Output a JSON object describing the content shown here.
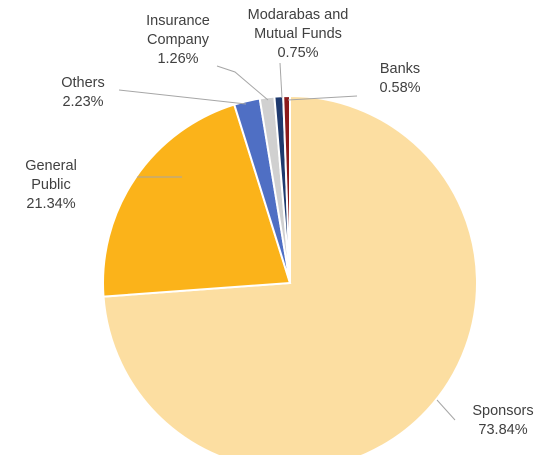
{
  "chart_data": {
    "type": "pie",
    "title": "",
    "start_angle_deg": 0,
    "direction": "clockwise",
    "slices": [
      {
        "name": "Sponsors",
        "label_lines": [
          "Sponsors"
        ],
        "value_label": "73.84%",
        "value": 73.84,
        "color": "#fcdea1"
      },
      {
        "name": "General Public",
        "label_lines": [
          "General",
          "Public"
        ],
        "value_label": "21.34%",
        "value": 21.34,
        "color": "#fbb31a"
      },
      {
        "name": "Others",
        "label_lines": [
          "Others"
        ],
        "value_label": "2.23%",
        "value": 2.23,
        "color": "#4f6fc4"
      },
      {
        "name": "Insurance Company",
        "label_lines": [
          "Insurance",
          "Company"
        ],
        "value_label": "1.26%",
        "value": 1.26,
        "color": "#d0d0d0"
      },
      {
        "name": "Modarabas and Mutual Funds",
        "label_lines": [
          "Modarabas and",
          "Mutual Funds"
        ],
        "value_label": "0.75%",
        "value": 0.75,
        "color": "#1f3a6e"
      },
      {
        "name": "Banks",
        "label_lines": [
          "Banks"
        ],
        "value_label": "0.58%",
        "value": 0.58,
        "color": "#8b1a1a"
      }
    ],
    "slice_border_color": "#ffffff",
    "leader_line_color": "#a6a6a6",
    "label_color": "#404040"
  }
}
